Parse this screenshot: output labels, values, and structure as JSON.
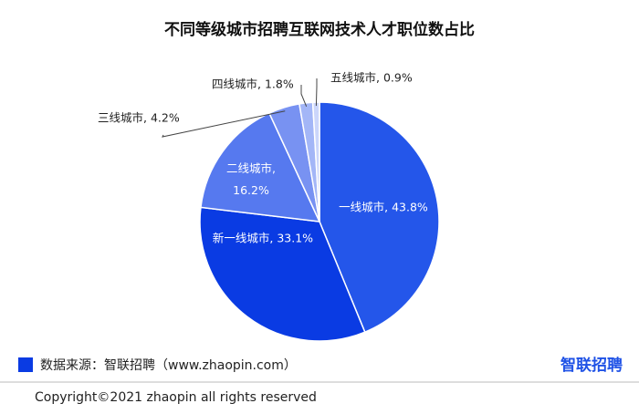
{
  "chart_data": {
    "type": "pie",
    "title": "不同等级城市招聘互联网技术人才职位数占比",
    "values": [
      43.8,
      33.1,
      16.2,
      4.2,
      1.8,
      0.9
    ],
    "value_labels": [
      "一线城市, 43.8%",
      "新一线城市, 33.1%",
      "二线城市, 16.2%",
      "三线城市, 4.2%",
      "四线城市, 1.8%",
      "五线城市, 0.9%"
    ],
    "colors": [
      "#2456ea",
      "#0a3be3",
      "#5679ef",
      "#7892f2",
      "#a3b6f7",
      "#cbd6fb"
    ],
    "source": "数据来源：智联招聘（www.zhaopin.com）",
    "logo": "智联招聘",
    "copyright": "Copyright©2021 zhaopin all rights reserved"
  }
}
